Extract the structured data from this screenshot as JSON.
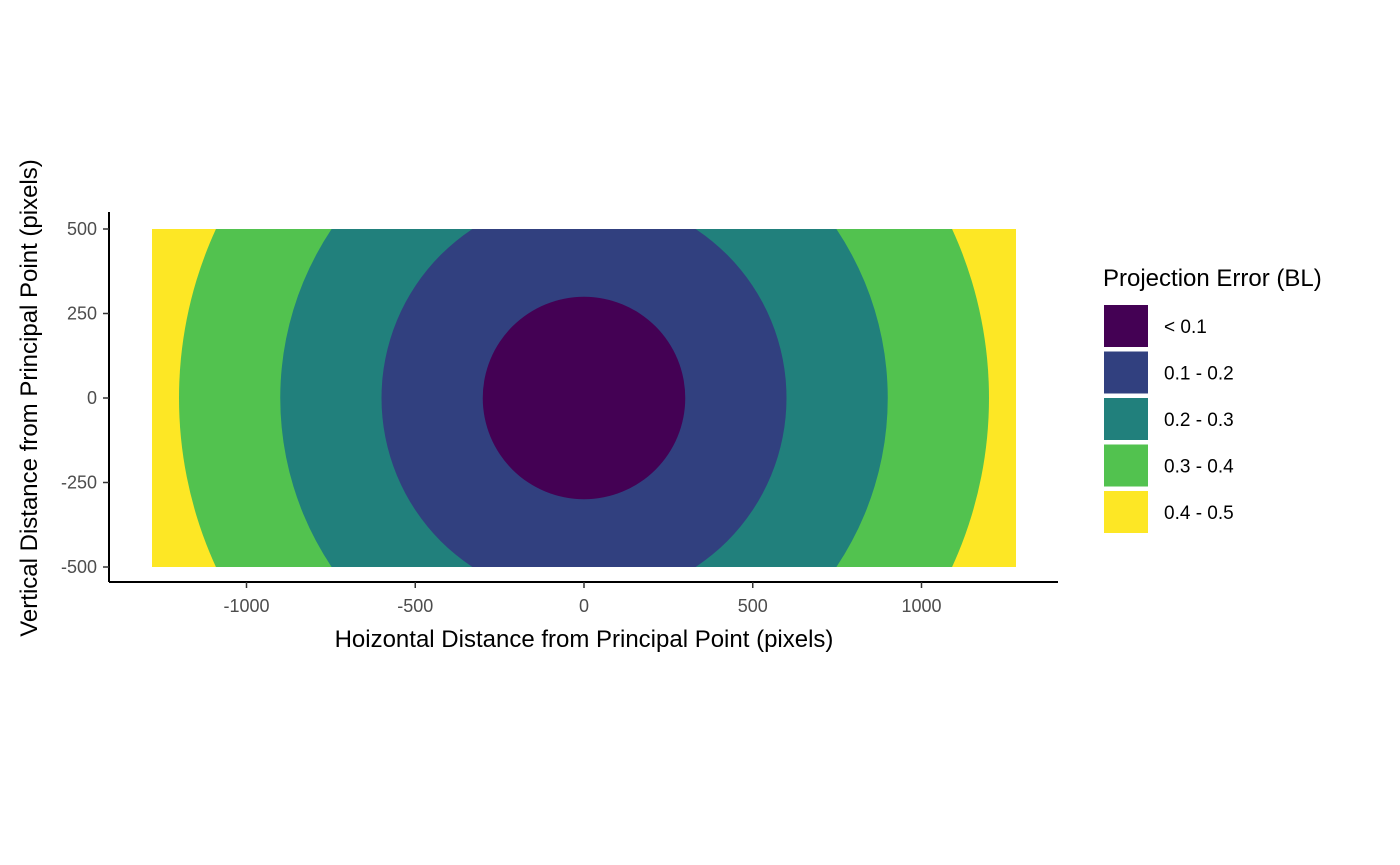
{
  "chart_data": {
    "type": "heatmap",
    "title": "",
    "xlabel": "Hoizontal Distance from Principal Point (pixels)",
    "ylabel": "Vertical Distance from Principal Point (pixels)",
    "xlim": [
      -1280,
      1280
    ],
    "ylim": [
      -500,
      500
    ],
    "x_ticks": [
      -1000,
      -500,
      0,
      500,
      1000
    ],
    "x_tick_labels": [
      "-1000",
      "-500",
      "0",
      "500",
      "1000"
    ],
    "y_ticks": [
      500,
      250,
      0,
      -250,
      -500
    ],
    "y_tick_labels": [
      "500",
      "250",
      "0",
      "-250",
      "-500"
    ],
    "grid": false,
    "legend": {
      "title": "Projection Error (BL)",
      "placement": "right"
    },
    "bands": [
      {
        "label": "< 0.1",
        "max_radius": 300,
        "color": "#440154"
      },
      {
        "label": "0.1 - 0.2",
        "max_radius": 600,
        "color": "#31407F"
      },
      {
        "label": "0.2 - 0.3",
        "max_radius": 900,
        "color": "#21807C"
      },
      {
        "label": "0.3 - 0.4",
        "max_radius": 1200,
        "color": "#52C24F"
      },
      {
        "label": "0.4 - 0.5",
        "max_radius": 1500,
        "color": "#FDE725"
      }
    ]
  }
}
